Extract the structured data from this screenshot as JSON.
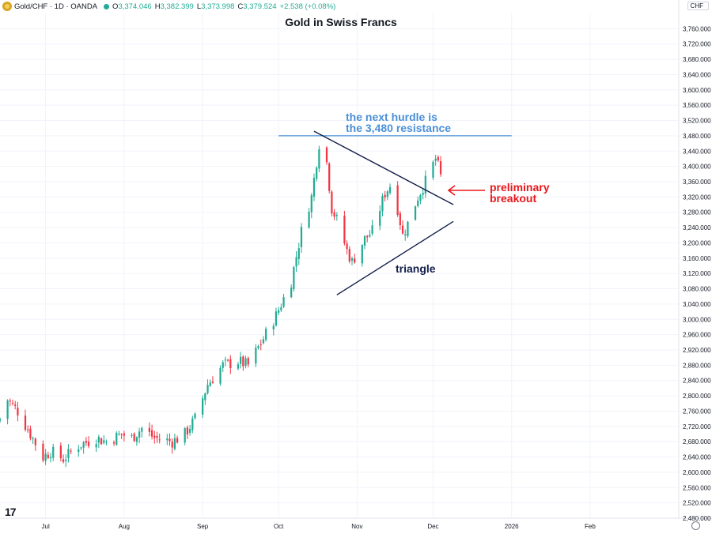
{
  "header": {
    "symbol": "Gold/CHF · 1D · OANDA",
    "open_label": "O",
    "open": "3,374.046",
    "high_label": "H",
    "high": "3,382.399",
    "low_label": "L",
    "low": "3,373.998",
    "close_label": "C",
    "close": "3,379.524",
    "change": "+2.538 (+0.08%)"
  },
  "currency_label": "CHF",
  "logo_text": "17",
  "colors": {
    "up": "#22ab94",
    "down": "#f23645",
    "resistance": "#4a90d9",
    "annotation_red": "#e8161c",
    "triangle": "#131e4a"
  },
  "icons": {
    "logo": "gold-coin-icon",
    "settings": "gear-icon"
  },
  "chart_data": {
    "type": "candlestick",
    "title": "Gold in Swiss Francs",
    "ylim": [
      2480,
      3800
    ],
    "yticks": [
      "2,480.000",
      "2,520.000",
      "2,560.000",
      "2,600.000",
      "2,640.000",
      "2,680.000",
      "2,720.000",
      "2,760.000",
      "2,800.000",
      "2,840.000",
      "2,880.000",
      "2,920.000",
      "2,960.000",
      "3,000.000",
      "3,040.000",
      "3,080.000",
      "3,120.000",
      "3,160.000",
      "3,200.000",
      "3,240.000",
      "3,280.000",
      "3,320.000",
      "3,360.000",
      "3,400.000",
      "3,440.000",
      "3,480.000",
      "3,520.000",
      "3,560.000",
      "3,600.000",
      "3,640.000",
      "3,680.000",
      "3,720.000",
      "3,760.000"
    ],
    "xlim": [
      "2025-06-13",
      "2026-03-08"
    ],
    "xticks": [
      {
        "date": "2025-07-01",
        "label": "Jul"
      },
      {
        "date": "2025-08-01",
        "label": "Aug"
      },
      {
        "date": "2025-09-01",
        "label": "Sep"
      },
      {
        "date": "2025-10-01",
        "label": "Oct"
      },
      {
        "date": "2025-11-01",
        "label": "Nov"
      },
      {
        "date": "2025-12-01",
        "label": "Dec"
      },
      {
        "date": "2026-01-01",
        "label": "2026"
      },
      {
        "date": "2026-02-01",
        "label": "Feb"
      }
    ],
    "keypoints": [
      [
        "2025-06-13",
        2740
      ],
      [
        "2025-06-16",
        2790
      ],
      [
        "2025-06-20",
        2760
      ],
      [
        "2025-06-25",
        2700
      ],
      [
        "2025-06-30",
        2640
      ],
      [
        "2025-07-03",
        2655
      ],
      [
        "2025-07-08",
        2635
      ],
      [
        "2025-07-14",
        2670
      ],
      [
        "2025-07-21",
        2690
      ],
      [
        "2025-07-25",
        2680
      ],
      [
        "2025-07-31",
        2700
      ],
      [
        "2025-08-04",
        2690
      ],
      [
        "2025-08-08",
        2715
      ],
      [
        "2025-08-13",
        2690
      ],
      [
        "2025-08-20",
        2680
      ],
      [
        "2025-08-25",
        2700
      ],
      [
        "2025-08-29",
        2740
      ],
      [
        "2025-09-03",
        2830
      ],
      [
        "2025-09-09",
        2880
      ],
      [
        "2025-09-15",
        2890
      ],
      [
        "2025-09-19",
        2880
      ],
      [
        "2025-09-25",
        2950
      ],
      [
        "2025-09-30",
        3010
      ],
      [
        "2025-10-06",
        3100
      ],
      [
        "2025-10-10",
        3230
      ],
      [
        "2025-10-14",
        3320
      ],
      [
        "2025-10-17",
        3460
      ],
      [
        "2025-10-20",
        3410
      ],
      [
        "2025-10-22",
        3290
      ],
      [
        "2025-10-24",
        3260
      ],
      [
        "2025-10-28",
        3180
      ],
      [
        "2025-10-30",
        3150
      ],
      [
        "2025-11-04",
        3210
      ],
      [
        "2025-11-07",
        3230
      ],
      [
        "2025-11-12",
        3330
      ],
      [
        "2025-11-14",
        3350
      ],
      [
        "2025-11-17",
        3290
      ],
      [
        "2025-11-19",
        3220
      ],
      [
        "2025-11-21",
        3250
      ],
      [
        "2025-11-25",
        3320
      ],
      [
        "2025-11-28",
        3360
      ],
      [
        "2025-12-02",
        3420
      ],
      [
        "2025-12-04",
        3379.524
      ]
    ],
    "resistance": {
      "value": 3480,
      "from": "2025-10-01",
      "to": "2026-01-01"
    },
    "triangle": {
      "upper": [
        [
          "2025-10-15",
          3492
        ],
        [
          "2025-12-09",
          3300
        ]
      ],
      "lower": [
        [
          "2025-10-24",
          3064
        ],
        [
          "2025-12-09",
          3256
        ]
      ]
    },
    "annotations": [
      {
        "id": "resistance-note",
        "lines": [
          "the next hurdle is",
          "the 3,480 resistance"
        ]
      },
      {
        "id": "breakout-note",
        "lines": [
          "preliminary",
          "breakout"
        ]
      },
      {
        "id": "triangle-label",
        "lines": [
          "triangle"
        ]
      }
    ]
  }
}
